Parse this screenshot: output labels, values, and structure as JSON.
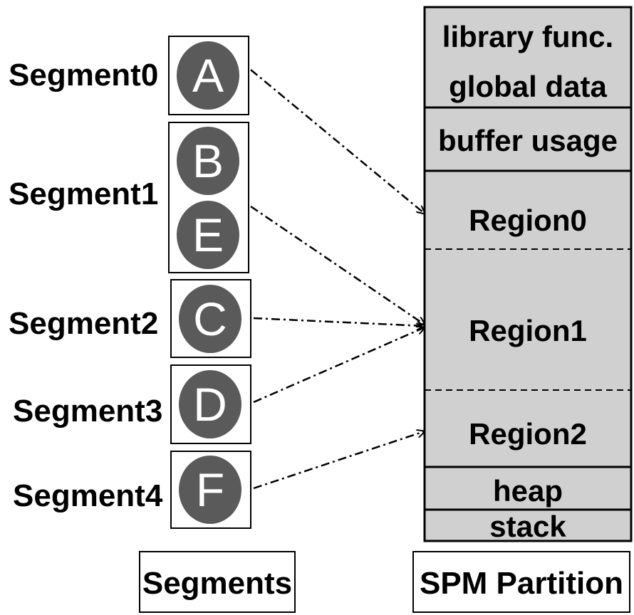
{
  "segments_panel": {
    "caption": "Segments",
    "segments": [
      {
        "label": "Segment0",
        "letters": [
          "A"
        ]
      },
      {
        "label": "Segment1",
        "letters": [
          "B",
          "E"
        ]
      },
      {
        "label": "Segment2",
        "letters": [
          "C"
        ]
      },
      {
        "label": "Segment3",
        "letters": [
          "D"
        ]
      },
      {
        "label": "Segment4",
        "letters": [
          "F"
        ]
      }
    ]
  },
  "spm_panel": {
    "caption": "SPM Partition",
    "sections": {
      "library_func": "library func.",
      "global_data": "global data",
      "buffer_usage": "buffer usage",
      "region0": "Region0",
      "region1": "Region1",
      "region2": "Region2",
      "heap": "heap",
      "stack": "stack"
    }
  },
  "mappings": [
    {
      "from": "Segment0",
      "to": "Region0"
    },
    {
      "from": "Segment1",
      "to": "Region1"
    },
    {
      "from": "Segment2",
      "to": "Region1"
    },
    {
      "from": "Segment3",
      "to": "Region1"
    },
    {
      "from": "Segment4",
      "to": "Region2"
    }
  ],
  "colors": {
    "circle_fill": "#5a5a5a",
    "spm_fill": "#d0d0d0",
    "stroke": "#000000"
  }
}
